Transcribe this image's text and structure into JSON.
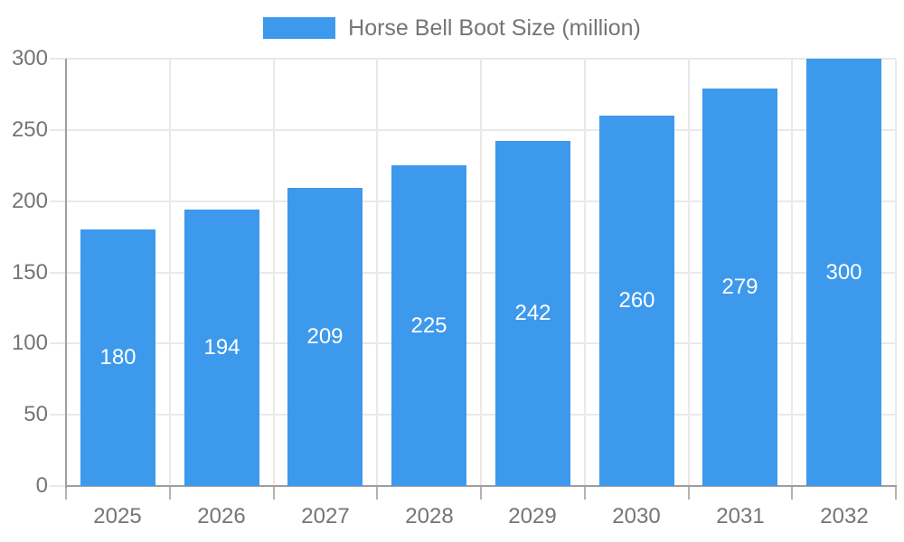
{
  "chart_data": {
    "type": "bar",
    "series_name": "Horse Bell Boot Size (million)",
    "title": "Horse Bell Boot Size (million)",
    "categories": [
      "2025",
      "2026",
      "2027",
      "2028",
      "2029",
      "2030",
      "2031",
      "2032"
    ],
    "values": [
      180,
      194,
      209,
      225,
      242,
      260,
      279,
      300
    ],
    "xlabel": "",
    "ylabel": "",
    "ylim": [
      0,
      300
    ],
    "yticks": [
      0,
      50,
      100,
      150,
      200,
      250,
      300
    ],
    "legend_position": "top",
    "grid": true,
    "bar_color": "#3d99ec",
    "bar_label_color": "#ffffff",
    "axis_text_color": "#757575",
    "grid_color": "#e9e9e9",
    "axis_line_color": "#9e9e9e",
    "tick_mark_color": "#b3b3b3",
    "background_color": "#ffffff"
  }
}
